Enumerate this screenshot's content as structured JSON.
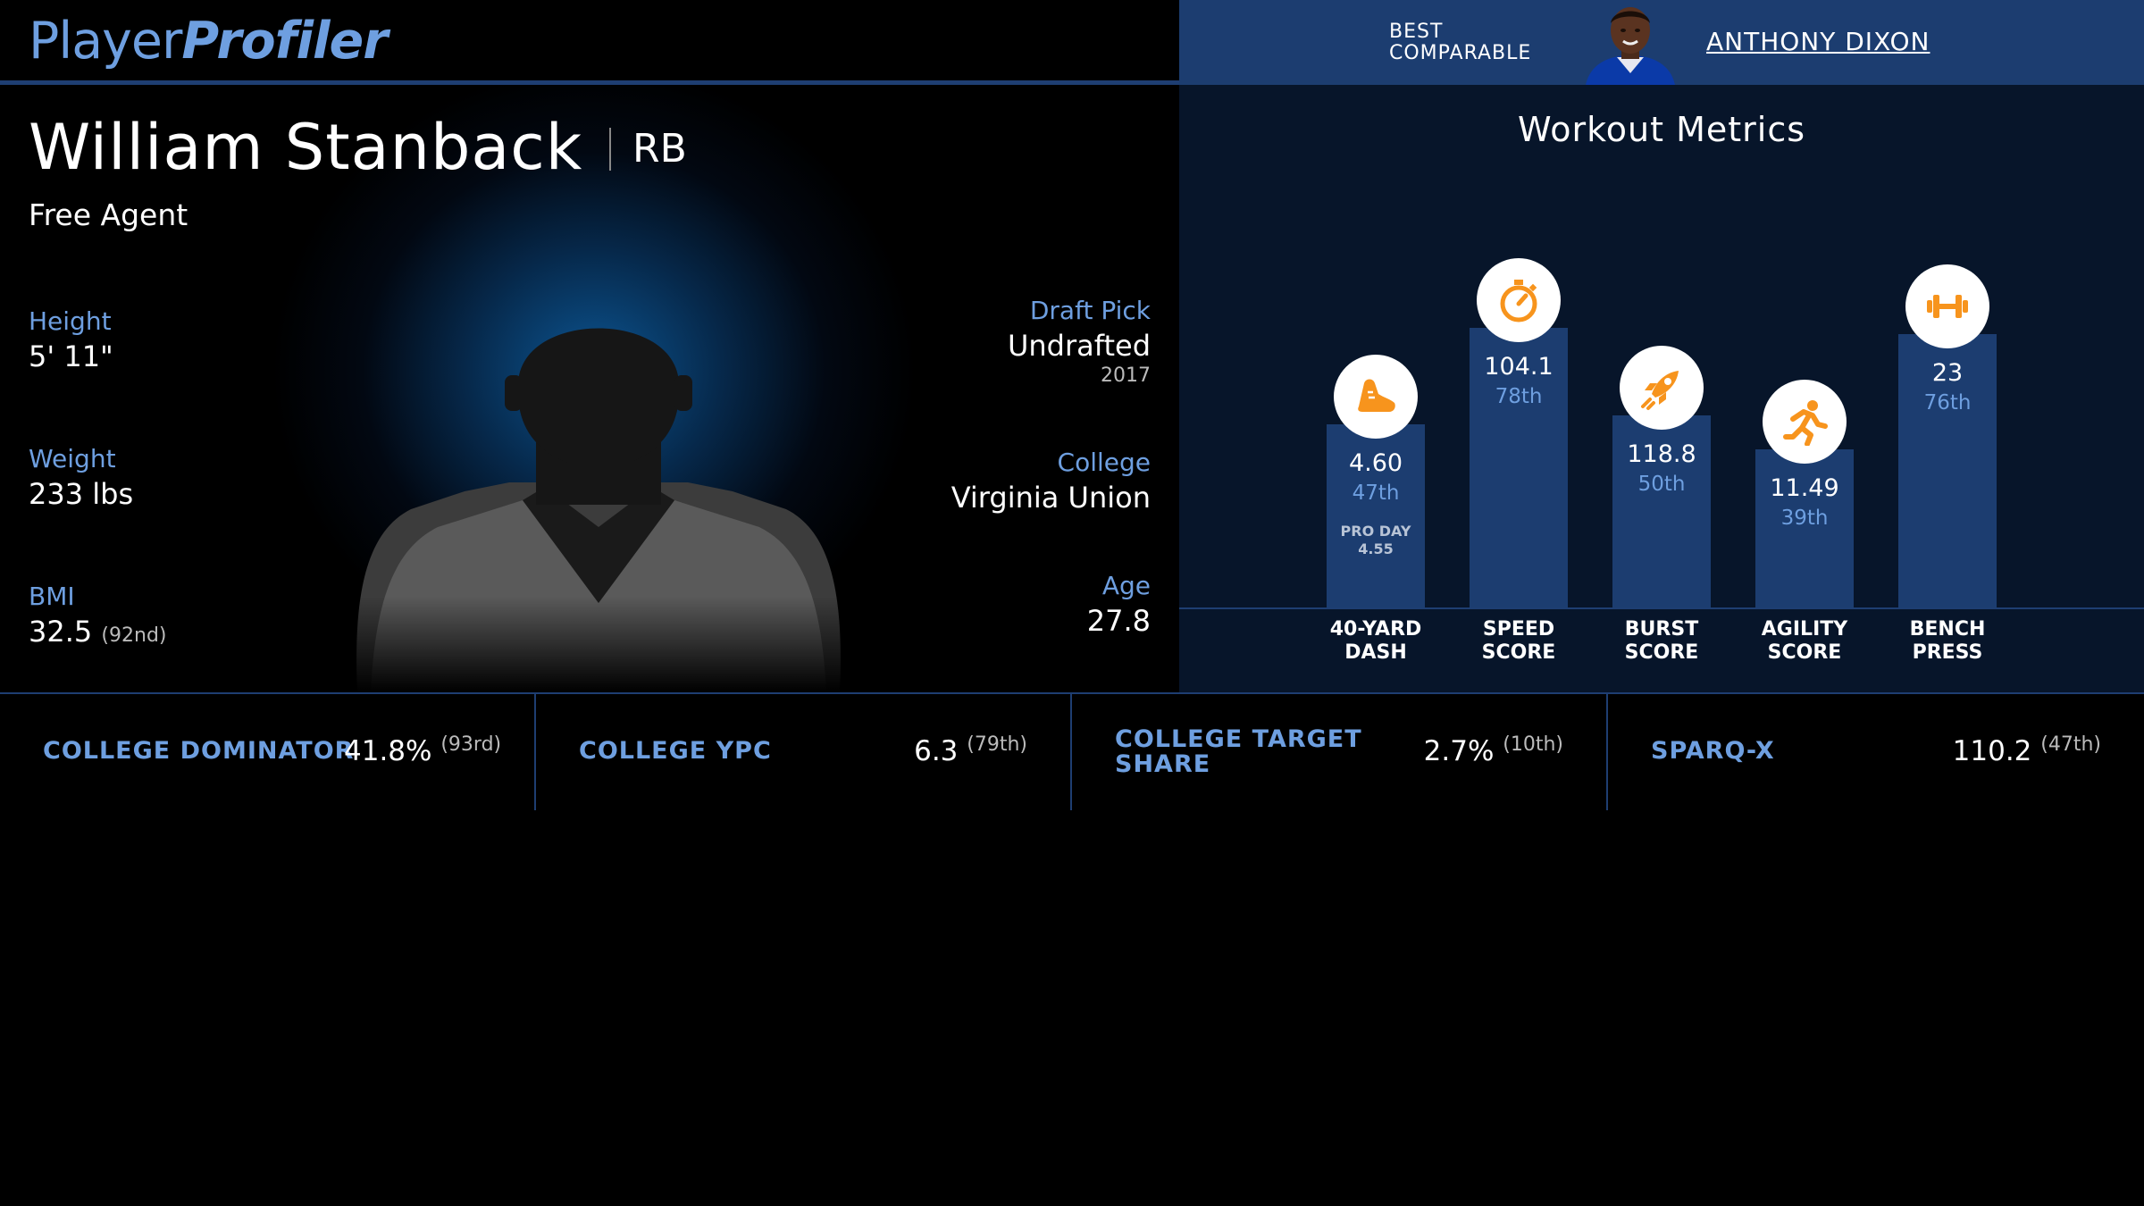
{
  "header": {
    "logo_part1": "Player",
    "logo_part2": "Profiler",
    "comparable_label_line1": "BEST",
    "comparable_label_line2": "COMPARABLE",
    "comparable_name": "ANTHONY DIXON"
  },
  "player": {
    "name": "William Stanback",
    "position": "RB",
    "team": "Free Agent",
    "height_label": "Height",
    "height_value": "5' 11\"",
    "weight_label": "Weight",
    "weight_value": "233 lbs",
    "bmi_label": "BMI",
    "bmi_value": "32.5",
    "bmi_rank": "(92nd)",
    "draft_label": "Draft Pick",
    "draft_value": "Undrafted",
    "draft_year": "2017",
    "college_label": "College",
    "college_value": "Virginia Union",
    "age_label": "Age",
    "age_value": "27.8"
  },
  "workout": {
    "title": "Workout Metrics",
    "accent_color": "#f7941d",
    "bar_color": "#1c3d70",
    "metrics": [
      {
        "label1": "40-YARD",
        "label2": "DASH",
        "value": "4.60",
        "percentile": "47th",
        "extra1": "PRO DAY",
        "extra2": "4.55",
        "icon": "shoe-icon",
        "percentile_num": 47
      },
      {
        "label1": "SPEED",
        "label2": "SCORE",
        "value": "104.1",
        "percentile": "78th",
        "icon": "stopwatch-icon",
        "percentile_num": 78
      },
      {
        "label1": "BURST",
        "label2": "SCORE",
        "value": "118.8",
        "percentile": "50th",
        "icon": "rocket-icon",
        "percentile_num": 50
      },
      {
        "label1": "AGILITY",
        "label2": "SCORE",
        "value": "11.49",
        "percentile": "39th",
        "icon": "runner-icon",
        "percentile_num": 39
      },
      {
        "label1": "BENCH",
        "label2": "PRESS",
        "value": "23",
        "percentile": "76th",
        "icon": "dumbbell-icon",
        "percentile_num": 76
      }
    ]
  },
  "bottom_metrics": [
    {
      "label": "COLLEGE DOMINATOR",
      "value": "41.8%",
      "rank": "(93rd)"
    },
    {
      "label": "COLLEGE YPC",
      "value": "6.3",
      "rank": "(79th)"
    },
    {
      "label_line1": "COLLEGE TARGET",
      "label_line2": "SHARE",
      "value": "2.7%",
      "rank": "(10th)"
    },
    {
      "label": "SPARQ-X",
      "value": "110.2",
      "rank": "(47th)"
    }
  ]
}
